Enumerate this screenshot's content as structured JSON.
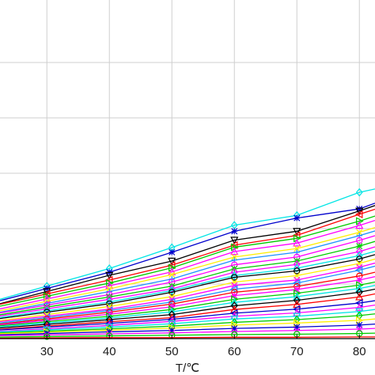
{
  "chart_data": {
    "type": "line",
    "xlabel": "T/℃",
    "ylabel": "",
    "title": "",
    "xlim": [
      22.5,
      82.5
    ],
    "ylim": [
      0,
      1
    ],
    "grid": true,
    "legend": "none",
    "x_ticks": [
      "30",
      "40",
      "50",
      "60",
      "70",
      "80"
    ],
    "x": [
      30,
      40,
      50,
      60,
      70,
      80,
      82.5
    ],
    "series": [
      {
        "color": "#00e5e5",
        "marker": "diamond",
        "values": [
          0.155,
          0.207,
          0.269,
          0.335,
          0.364,
          0.432,
          0.442
        ]
      },
      {
        "color": "#0000cc",
        "marker": "star",
        "values": [
          0.148,
          0.196,
          0.255,
          0.317,
          0.356,
          0.383,
          0.4
        ]
      },
      {
        "color": "#000000",
        "marker": "triangle-down",
        "values": [
          0.139,
          0.187,
          0.229,
          0.291,
          0.317,
          0.377,
          0.393
        ]
      },
      {
        "color": "#ff0000",
        "marker": "triangle-left",
        "values": [
          0.132,
          0.173,
          0.217,
          0.276,
          0.305,
          0.367,
          0.382
        ]
      },
      {
        "color": "#00cc00",
        "marker": "triangle-right",
        "values": [
          0.125,
          0.164,
          0.209,
          0.27,
          0.296,
          0.347,
          0.362
        ]
      },
      {
        "color": "#ff00ff",
        "marker": "triangle-up",
        "values": [
          0.117,
          0.156,
          0.197,
          0.257,
          0.282,
          0.334,
          0.349
        ]
      },
      {
        "color": "#ffee00",
        "marker": "x",
        "values": [
          0.11,
          0.147,
          0.189,
          0.241,
          0.266,
          0.314,
          0.328
        ]
      },
      {
        "color": "#1e90ff",
        "marker": "cross",
        "values": [
          0.104,
          0.139,
          0.176,
          0.232,
          0.255,
          0.304,
          0.318
        ]
      },
      {
        "color": "#ff00ff",
        "marker": "circle",
        "values": [
          0.099,
          0.13,
          0.167,
          0.218,
          0.241,
          0.29,
          0.304
        ]
      },
      {
        "color": "#00cc00",
        "marker": "star",
        "values": [
          0.093,
          0.123,
          0.155,
          0.206,
          0.229,
          0.273,
          0.287
        ]
      },
      {
        "color": "#ff00ff",
        "marker": "diamond",
        "values": [
          0.088,
          0.116,
          0.147,
          0.196,
          0.219,
          0.257,
          0.271
        ]
      },
      {
        "color": "#00e5e5",
        "marker": "diamond",
        "values": [
          0.082,
          0.108,
          0.142,
          0.186,
          0.208,
          0.245,
          0.258
        ]
      },
      {
        "color": "#000000",
        "marker": "circle",
        "values": [
          0.078,
          0.103,
          0.137,
          0.181,
          0.2,
          0.235,
          0.248
        ]
      },
      {
        "color": "#ffee00",
        "marker": "x",
        "values": [
          0.071,
          0.095,
          0.124,
          0.167,
          0.186,
          0.222,
          0.235
        ]
      },
      {
        "color": "#ff00ff",
        "marker": "x",
        "values": [
          0.066,
          0.087,
          0.116,
          0.157,
          0.173,
          0.211,
          0.223
        ]
      },
      {
        "color": "#1e90ff",
        "marker": "triangle-left",
        "values": [
          0.062,
          0.083,
          0.108,
          0.146,
          0.164,
          0.202,
          0.214
        ]
      },
      {
        "color": "#ff0000",
        "marker": "circle",
        "values": [
          0.058,
          0.078,
          0.102,
          0.137,
          0.154,
          0.185,
          0.196
        ]
      },
      {
        "color": "#ff00ff",
        "marker": "star",
        "values": [
          0.054,
          0.072,
          0.094,
          0.127,
          0.145,
          0.173,
          0.183
        ]
      },
      {
        "color": "#00cc00",
        "marker": "triangle-right",
        "values": [
          0.05,
          0.066,
          0.086,
          0.116,
          0.134,
          0.158,
          0.167
        ]
      },
      {
        "color": "#00e5e5",
        "marker": "triangle-up",
        "values": [
          0.046,
          0.061,
          0.079,
          0.107,
          0.124,
          0.148,
          0.157
        ]
      },
      {
        "color": "#000000",
        "marker": "diamond",
        "values": [
          0.042,
          0.056,
          0.071,
          0.097,
          0.113,
          0.137,
          0.146
        ]
      },
      {
        "color": "#ff0000",
        "marker": "triangle-up",
        "values": [
          0.037,
          0.05,
          0.062,
          0.086,
          0.101,
          0.123,
          0.132
        ]
      },
      {
        "color": "#0000cc",
        "marker": "triangle-left",
        "values": [
          0.034,
          0.045,
          0.057,
          0.075,
          0.087,
          0.105,
          0.112
        ]
      },
      {
        "color": "#ff00ff",
        "marker": "triangle-up",
        "values": [
          0.029,
          0.039,
          0.051,
          0.066,
          0.076,
          0.092,
          0.099
        ]
      },
      {
        "color": "#00e5e5",
        "marker": "triangle-down",
        "values": [
          0.026,
          0.034,
          0.044,
          0.058,
          0.066,
          0.08,
          0.086
        ]
      },
      {
        "color": "#00cc00",
        "marker": "diamond",
        "values": [
          0.022,
          0.029,
          0.037,
          0.048,
          0.056,
          0.068,
          0.073
        ]
      },
      {
        "color": "#ffee00",
        "marker": "triangle-right",
        "values": [
          0.019,
          0.025,
          0.031,
          0.04,
          0.046,
          0.054,
          0.058
        ]
      },
      {
        "color": "#0000cc",
        "marker": "star",
        "values": [
          0.015,
          0.02,
          0.024,
          0.03,
          0.034,
          0.04,
          0.043
        ]
      },
      {
        "color": "#ff00ff",
        "marker": "x",
        "values": [
          0.011,
          0.014,
          0.017,
          0.021,
          0.024,
          0.028,
          0.03
        ]
      },
      {
        "color": "#00cc00",
        "marker": "circle",
        "values": [
          0.006,
          0.008,
          0.01,
          0.012,
          0.013,
          0.015,
          0.016
        ]
      },
      {
        "color": "#ff0000",
        "marker": "none",
        "values": [
          0.002,
          0.003,
          0.003,
          0.004,
          0.004,
          0.005,
          0.005
        ]
      }
    ]
  }
}
